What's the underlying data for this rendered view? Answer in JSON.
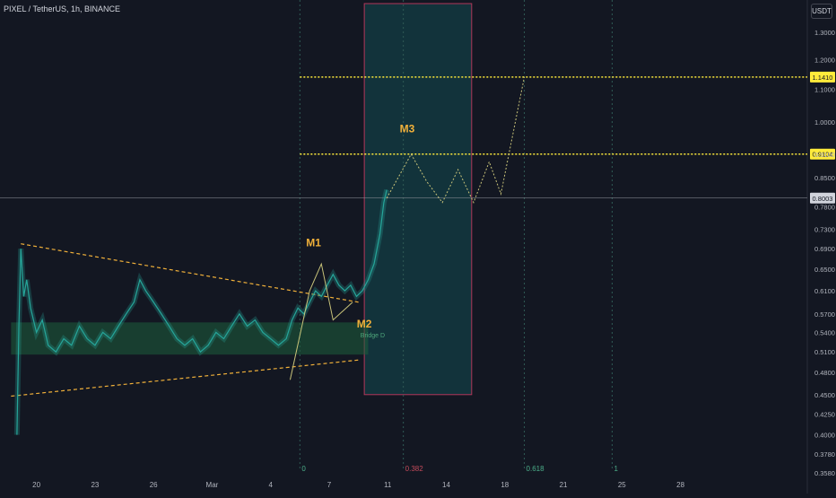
{
  "symbol_title": "PIXEL / TetherUS, 1h, BINANCE",
  "currency_button": "USDT",
  "colors": {
    "background": "#131722",
    "candle": "#26a69a",
    "trendline": "#f0b03a",
    "target_line": "#ffeb3b",
    "zone": "#1e5e3c",
    "box_border": "#b2365a",
    "box_fill": "#133d44",
    "price_line": "#9598a1"
  },
  "chart_data": {
    "type": "candlestick",
    "pair": "PIXEL/USDT",
    "timeframe": "1h",
    "exchange": "BINANCE",
    "y_scale": "log",
    "ylim": [
      0.355,
      1.4
    ],
    "y_ticks": [
      0.358,
      0.378,
      0.4,
      0.425,
      0.45,
      0.48,
      0.51,
      0.54,
      0.57,
      0.61,
      0.65,
      0.69,
      0.73,
      0.78,
      0.85,
      0.91,
      1.0,
      1.1,
      1.2,
      1.3
    ],
    "y_tick_labels": [
      "0.3580",
      "0.3780",
      "0.4000",
      "0.4250",
      "0.4500",
      "0.4800",
      "0.5100",
      "0.5400",
      "0.5700",
      "0.6100",
      "0.6500",
      "0.6900",
      "0.7300",
      "0.7800",
      "0.8500",
      "0.9100",
      "1.0000",
      "1.1000",
      "1.2000",
      "1.3000"
    ],
    "xlim": [
      -0.5,
      40.5
    ],
    "x_ticks": [
      1,
      4,
      7,
      10,
      13,
      16,
      19,
      22,
      25,
      28,
      31,
      34,
      37
    ],
    "x_tick_labels": [
      "20",
      "23",
      "26",
      "Mar",
      "4",
      "7",
      "11",
      "14",
      "18",
      "21",
      "25",
      "28",
      ""
    ],
    "price_series": [
      [
        0.0,
        0.4
      ],
      [
        0.1,
        0.55
      ],
      [
        0.2,
        0.69
      ],
      [
        0.35,
        0.6
      ],
      [
        0.5,
        0.63
      ],
      [
        0.7,
        0.58
      ],
      [
        1.0,
        0.54
      ],
      [
        1.3,
        0.56
      ],
      [
        1.6,
        0.52
      ],
      [
        2.0,
        0.51
      ],
      [
        2.4,
        0.53
      ],
      [
        2.8,
        0.52
      ],
      [
        3.2,
        0.55
      ],
      [
        3.6,
        0.53
      ],
      [
        4.0,
        0.52
      ],
      [
        4.4,
        0.54
      ],
      [
        4.8,
        0.53
      ],
      [
        5.2,
        0.55
      ],
      [
        5.6,
        0.57
      ],
      [
        6.0,
        0.59
      ],
      [
        6.3,
        0.63
      ],
      [
        6.6,
        0.61
      ],
      [
        7.0,
        0.59
      ],
      [
        7.4,
        0.57
      ],
      [
        7.8,
        0.55
      ],
      [
        8.2,
        0.53
      ],
      [
        8.6,
        0.52
      ],
      [
        9.0,
        0.53
      ],
      [
        9.4,
        0.51
      ],
      [
        9.8,
        0.52
      ],
      [
        10.2,
        0.54
      ],
      [
        10.6,
        0.53
      ],
      [
        11.0,
        0.55
      ],
      [
        11.4,
        0.57
      ],
      [
        11.8,
        0.55
      ],
      [
        12.2,
        0.56
      ],
      [
        12.6,
        0.54
      ],
      [
        13.0,
        0.53
      ],
      [
        13.4,
        0.52
      ],
      [
        13.8,
        0.53
      ],
      [
        14.1,
        0.56
      ],
      [
        14.4,
        0.58
      ],
      [
        14.7,
        0.57
      ],
      [
        15.0,
        0.59
      ],
      [
        15.3,
        0.61
      ],
      [
        15.6,
        0.6
      ],
      [
        15.9,
        0.62
      ],
      [
        16.2,
        0.64
      ],
      [
        16.5,
        0.62
      ],
      [
        16.8,
        0.61
      ],
      [
        17.1,
        0.62
      ],
      [
        17.4,
        0.6
      ],
      [
        17.7,
        0.61
      ],
      [
        18.0,
        0.63
      ],
      [
        18.3,
        0.66
      ],
      [
        18.6,
        0.72
      ],
      [
        18.8,
        0.79
      ],
      [
        18.95,
        0.82
      ]
    ],
    "projection_path": [
      [
        18.95,
        0.8
      ],
      [
        20.2,
        0.91
      ],
      [
        21.0,
        0.84
      ],
      [
        21.8,
        0.79
      ],
      [
        22.6,
        0.87
      ],
      [
        23.4,
        0.79
      ],
      [
        24.2,
        0.89
      ],
      [
        24.8,
        0.81
      ],
      [
        26.0,
        1.141
      ]
    ],
    "m1_path": [
      [
        14.0,
        0.47
      ],
      [
        15.0,
        0.61
      ],
      [
        15.6,
        0.66
      ],
      [
        16.2,
        0.56
      ],
      [
        17.2,
        0.59
      ]
    ],
    "trendline_upper": [
      [
        0.2,
        0.7
      ],
      [
        17.5,
        0.59
      ]
    ],
    "trendline_lower": [
      [
        -0.3,
        0.448
      ],
      [
        17.5,
        0.498
      ]
    ],
    "support_zone": [
      0.506,
      0.556
    ],
    "support_zone_label": "Bridge D",
    "current_price": 0.8003,
    "current_price_label": "0.8003",
    "targets": [
      {
        "price": 0.9104,
        "label": "0.9104"
      },
      {
        "price": 1.141,
        "label": "1.1410"
      }
    ],
    "fib_box": {
      "from": 17.8,
      "to": 23.3,
      "low": 0.45,
      "high": 1.4
    },
    "fib_levels": [
      {
        "x": 14.5,
        "label": "0"
      },
      {
        "x": 19.8,
        "label": "0.382"
      },
      {
        "x": 26.0,
        "label": "0.618"
      },
      {
        "x": 30.5,
        "label": "1"
      }
    ],
    "annotations": [
      {
        "text": "M1",
        "x": 15.2,
        "y": 0.695
      },
      {
        "text": "M2",
        "x": 17.8,
        "y": 0.548
      },
      {
        "text": "M3",
        "x": 20.0,
        "y": 0.97
      }
    ]
  }
}
